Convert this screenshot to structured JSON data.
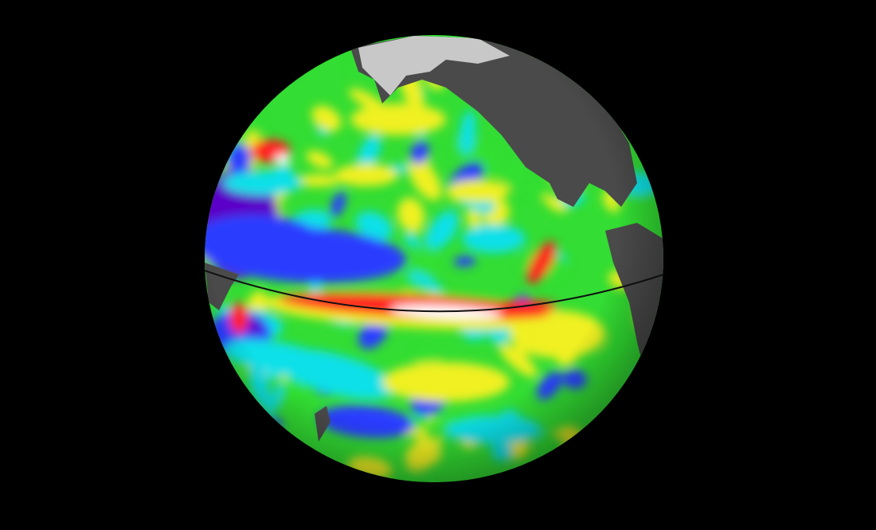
{
  "scene": {
    "background_color": "#000000",
    "land_color": "#4a4a4a",
    "ice_color": "#c8c8c8",
    "ocean_base_color": "#33dd33",
    "palette": {
      "low": "#5a00c8",
      "cool": "#2a3cff",
      "cyan": "#10e0e8",
      "neutral": "#30e030",
      "warm": "#f0f020",
      "hot": "#ff2020",
      "extreme": "#ffffff"
    },
    "equator_line_color": "#111111"
  }
}
